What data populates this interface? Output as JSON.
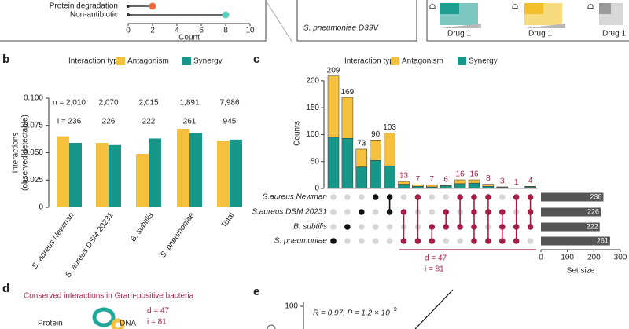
{
  "chart_data": [
    {
      "type": "lollipop",
      "categories": [
        "Protein degradation",
        "Non-antibiotic"
      ],
      "values": [
        2,
        8
      ],
      "colors": [
        "#f26c3a",
        "#5ecfc4"
      ],
      "xlabel": "Count",
      "xlim": [
        0,
        10
      ],
      "xticks": [
        0,
        2,
        4,
        6,
        8,
        10
      ]
    },
    {
      "type": "bar",
      "panel_label": "b",
      "legend_title": "Interaction type:",
      "categories": [
        "S. aureus Newman",
        "S. aureus DSM 20231",
        "B. subtilis",
        "S. pneumoniae",
        "Total"
      ],
      "series": [
        {
          "name": "Antagonism",
          "color": "#f5c13d",
          "values": [
            0.065,
            0.059,
            0.049,
            0.072,
            0.061
          ]
        },
        {
          "name": "Synergy",
          "color": "#16978a",
          "values": [
            0.059,
            0.057,
            0.063,
            0.068,
            0.062
          ]
        }
      ],
      "n_labels": [
        "n = 2,010",
        "2,070",
        "2,015",
        "1,891",
        "7,986"
      ],
      "i_labels": [
        "i = 236",
        "226",
        "222",
        "261",
        "945"
      ],
      "ylabel": [
        "Interactions",
        "(observed/detectable)"
      ],
      "ylim": [
        0,
        0.1
      ],
      "yticks": [
        0,
        0.025,
        {
          "value": 0.05,
          "label": "0.050"
        },
        0.075,
        {
          "value": 0.1,
          "label": "0.100"
        }
      ]
    },
    {
      "type": "upset",
      "panel_label": "c",
      "legend_title": "Interaction type:",
      "series": [
        {
          "name": "Antagonism",
          "color": "#f5c13d",
          "values": [
            114,
            76,
            33,
            38,
            61,
            5,
            3,
            4,
            1,
            7,
            6,
            4,
            1,
            0,
            1
          ]
        },
        {
          "name": "Synergy",
          "color": "#16978a",
          "values": [
            95,
            93,
            40,
            52,
            42,
            8,
            4,
            3,
            5,
            9,
            10,
            4,
            2,
            1,
            3
          ]
        }
      ],
      "totals": [
        209,
        169,
        73,
        90,
        103,
        13,
        7,
        7,
        6,
        16,
        16,
        8,
        3,
        1,
        4
      ],
      "sets": [
        "S.aureus Newman",
        "S.aureus DSM 20231",
        "B. subtilis",
        "S. pneumoniae"
      ],
      "set_sizes": [
        236,
        226,
        222,
        261
      ],
      "memberships": [
        [
          3
        ],
        [
          2
        ],
        [
          1
        ],
        [
          0
        ],
        [
          0,
          1
        ],
        [
          1,
          3
        ],
        [
          0,
          3
        ],
        [
          2,
          3
        ],
        [
          1,
          2
        ],
        [
          0,
          2
        ],
        [
          0,
          1,
          2,
          3
        ],
        [
          0,
          1,
          3
        ],
        [
          1,
          2,
          3
        ],
        [
          0,
          2,
          3
        ],
        [
          0,
          1,
          2
        ]
      ],
      "ylabel": "Counts",
      "ylim": [
        0,
        210
      ],
      "yticks": [
        0,
        50,
        100,
        150,
        200
      ],
      "set_xlabel": "Set size",
      "set_xlim": [
        0,
        300
      ],
      "set_xticks": [
        0,
        100,
        200,
        300
      ],
      "annotations": [
        "d = 47",
        "i = 81"
      ]
    },
    {
      "type": "scatter",
      "panel_label": "e",
      "yticks": [
        100
      ],
      "annotation": "R = 0.97, P = 1.2 × 10",
      "annotation_exponent": "−9"
    }
  ],
  "panels": {
    "strain_box": "S. pneumoniae D39V",
    "heatmap_labels": [
      "Drug 1",
      "Drug 1",
      "Drug 1"
    ],
    "panel_d": {
      "label": "d",
      "title": "Conserved interactions in Gram-positive bacteria",
      "d_label": "d = 47",
      "i_label": "i = 81",
      "labels": [
        "Protein",
        "DNA"
      ]
    }
  }
}
